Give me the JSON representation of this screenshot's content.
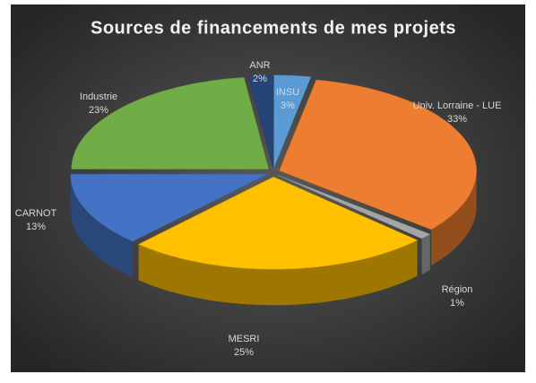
{
  "chart_data": {
    "type": "pie",
    "title": "Sources de financements de mes projets",
    "categories": [
      "INSU",
      "Univ. Lorraine - LUE",
      "Région",
      "MESRI",
      "CARNOT",
      "Industrie",
      "ANR"
    ],
    "values": [
      3,
      33,
      1,
      25,
      13,
      23,
      2
    ],
    "value_labels": [
      "3%",
      "33%",
      "1%",
      "25%",
      "13%",
      "23%",
      "2%"
    ],
    "colors": [
      "#5b9bd5",
      "#ed7d31",
      "#a5a5a5",
      "#ffc000",
      "#4472c4",
      "#70ad47",
      "#264478"
    ]
  }
}
